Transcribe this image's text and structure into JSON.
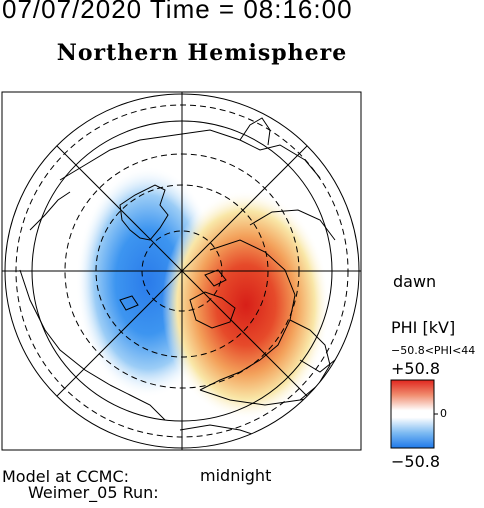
{
  "header": {
    "date_time": "07/07/2020 Time = 08:16:00",
    "hemisphere": "Northern Hemisphere"
  },
  "map": {
    "projection": "polar",
    "pole": "north",
    "noon_at": "top",
    "midnight_label": "midnight",
    "dawn_label": "dawn",
    "colors": {
      "negative": "#2a7bea",
      "positive": "#e0261e",
      "neutral": "#ffffff",
      "frame": "#000000"
    }
  },
  "colorbar": {
    "quantity": "PHI [kV]",
    "range_text": "−50.8<PHI<44",
    "max_label": "+50.8",
    "zero_label": "0",
    "min_label": "−50.8",
    "colors": [
      "#2a7bea",
      "#ffffff",
      "#e0261e"
    ]
  },
  "footer": {
    "line1": "Model at CCMC:",
    "line2": "Weimer_05 Run:"
  }
}
